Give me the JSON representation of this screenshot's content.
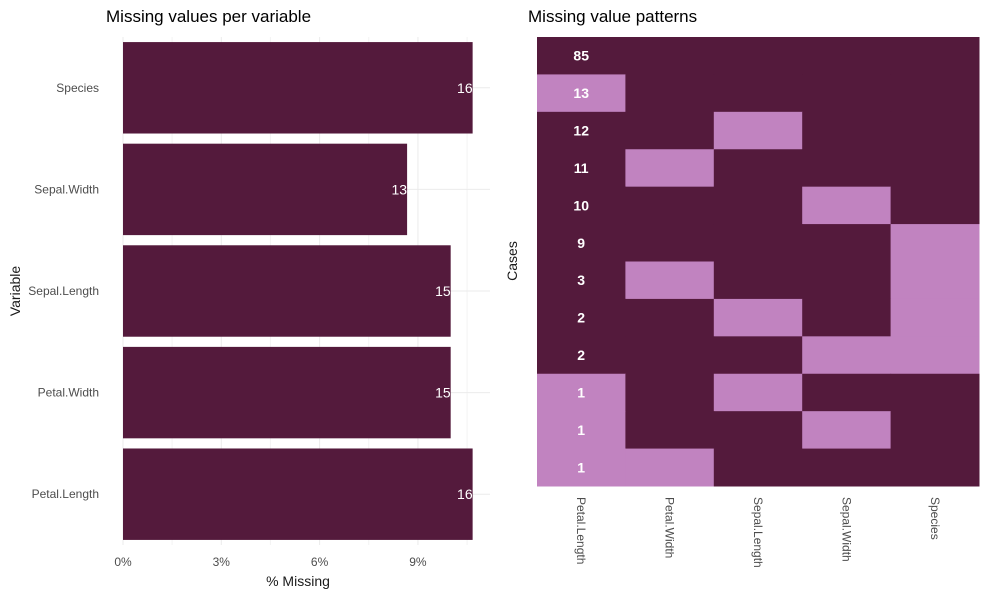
{
  "colors": {
    "present": "#541A3C",
    "missing": "#C183C0",
    "label": "#FFFFFF"
  },
  "chart_data": [
    {
      "type": "bar",
      "orientation": "horizontal",
      "title": "Missing values per variable",
      "xlabel": "% Missing",
      "ylabel": "Variable",
      "categories": [
        "Petal.Length",
        "Petal.Width",
        "Sepal.Length",
        "Sepal.Width",
        "Species"
      ],
      "values_pct": [
        10.67,
        10.0,
        10.0,
        8.67,
        10.67
      ],
      "data_labels": [
        "16",
        "15",
        "15",
        "13",
        "16"
      ],
      "xlim": [
        0,
        11.2
      ],
      "x_ticks": [
        0,
        3,
        6,
        9
      ],
      "x_tick_labels": [
        "0%",
        "3%",
        "6%",
        "9%"
      ],
      "grid": true
    },
    {
      "type": "heatmap",
      "title": "Missing value patterns",
      "ylabel": "Cases",
      "columns": [
        "Petal.Length",
        "Petal.Width",
        "Sepal.Length",
        "Sepal.Width",
        "Species"
      ],
      "rows": [
        {
          "count": "85",
          "missing": [
            0,
            0,
            0,
            0,
            0
          ]
        },
        {
          "count": "13",
          "missing": [
            1,
            0,
            0,
            0,
            0
          ]
        },
        {
          "count": "12",
          "missing": [
            0,
            0,
            1,
            0,
            0
          ]
        },
        {
          "count": "11",
          "missing": [
            0,
            1,
            0,
            0,
            0
          ]
        },
        {
          "count": "10",
          "missing": [
            0,
            0,
            0,
            1,
            0
          ]
        },
        {
          "count": "9",
          "missing": [
            0,
            0,
            0,
            0,
            1
          ]
        },
        {
          "count": "3",
          "missing": [
            0,
            1,
            0,
            0,
            1
          ]
        },
        {
          "count": "2",
          "missing": [
            0,
            0,
            1,
            0,
            1
          ]
        },
        {
          "count": "2",
          "missing": [
            0,
            0,
            0,
            1,
            1
          ]
        },
        {
          "count": "1",
          "missing": [
            1,
            0,
            1,
            0,
            0
          ]
        },
        {
          "count": "1",
          "missing": [
            1,
            0,
            0,
            1,
            0
          ]
        },
        {
          "count": "1",
          "missing": [
            1,
            1,
            0,
            0,
            0
          ]
        }
      ]
    }
  ]
}
